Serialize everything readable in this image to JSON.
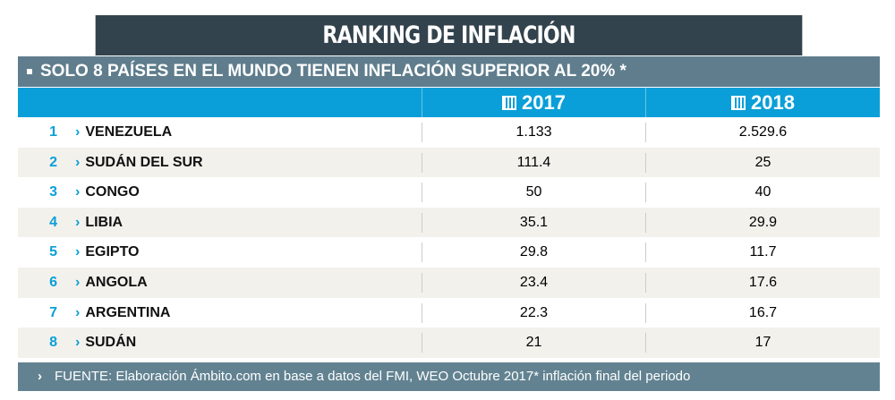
{
  "chart_data": {
    "type": "table",
    "title": "RANKING DE INFLACIÓN",
    "subtitle": "SOLO 8 PAÍSES EN EL MUNDO TIENEN INFLACIÓN SUPERIOR AL 20% *",
    "columns": [
      "2017",
      "2018"
    ],
    "rows": [
      {
        "rank": "1",
        "country": "VENEZUELA",
        "v2017": "1.133",
        "v2018": "2.529.6"
      },
      {
        "rank": "2",
        "country": "SUDÁN DEL SUR",
        "v2017": "111.4",
        "v2018": "25"
      },
      {
        "rank": "3",
        "country": "CONGO",
        "v2017": "50",
        "v2018": "40"
      },
      {
        "rank": "4",
        "country": "LIBIA",
        "v2017": "35.1",
        "v2018": "29.9"
      },
      {
        "rank": "5",
        "country": "EGIPTO",
        "v2017": "29.8",
        "v2018": "11.7"
      },
      {
        "rank": "6",
        "country": "ANGOLA",
        "v2017": "23.4",
        "v2018": "17.6"
      },
      {
        "rank": "7",
        "country": "ARGENTINA",
        "v2017": "22.3",
        "v2018": "16.7"
      },
      {
        "rank": "8",
        "country": "SUDÁN",
        "v2017": "21",
        "v2018": "17"
      }
    ],
    "source": "FUENTE: Elaboración Ámbito.com en base a datos del FMI, WEO Octubre 2017* inflación final del periodo"
  },
  "colors": {
    "title_bg": "#33434d",
    "subtitle_bg": "#5f7d8d",
    "header_bg": "#0a9fd8",
    "footer_bg": "#628291"
  }
}
